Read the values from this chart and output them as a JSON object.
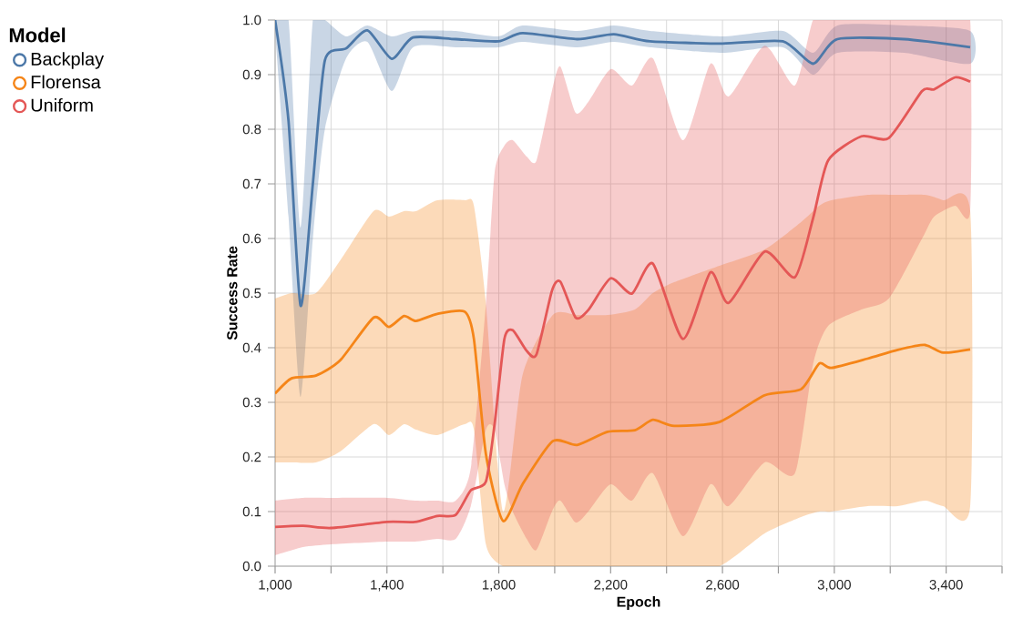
{
  "chart_data": {
    "type": "line",
    "xlabel": "Epoch",
    "ylabel": "Success Rate",
    "legend_title": "Model",
    "legend": "left",
    "grid": true,
    "line_style": "solid",
    "xlim": [
      1000,
      3600
    ],
    "xticks": [
      {
        "value": 1000,
        "label": "1,000"
      },
      {
        "value": 1200,
        "label": null
      },
      {
        "value": 1400,
        "label": "1,400"
      },
      {
        "value": 1600,
        "label": null
      },
      {
        "value": 1800,
        "label": "1,800"
      },
      {
        "value": 2000,
        "label": null
      },
      {
        "value": 2200,
        "label": "2,200"
      },
      {
        "value": 2400,
        "label": null
      },
      {
        "value": 2600,
        "label": "2,600"
      },
      {
        "value": 2800,
        "label": null
      },
      {
        "value": 3000,
        "label": "3,000"
      },
      {
        "value": 3200,
        "label": null
      },
      {
        "value": 3400,
        "label": "3,400"
      },
      {
        "value": 3600,
        "label": null
      }
    ],
    "ylim": [
      0,
      1
    ],
    "yticks": [
      {
        "value": 0,
        "label": "0.0"
      },
      0.1,
      0.2,
      0.3,
      0.4,
      0.5,
      0.6,
      0.7,
      0.8,
      0.9,
      {
        "value": 1,
        "label": "1.0"
      }
    ],
    "series": [
      {
        "name": "Backplay",
        "color": "#4c78a8",
        "x": [
          1000,
          1048,
          1091,
          1135,
          1178,
          1254,
          1330,
          1417,
          1493,
          1646,
          1798,
          1885,
          2080,
          2211,
          2341,
          2600,
          2816,
          2924,
          3011,
          3249,
          3486
        ],
        "values": [
          1.0,
          0.815,
          0.477,
          0.7,
          0.926,
          0.948,
          0.981,
          0.929,
          0.968,
          0.965,
          0.961,
          0.976,
          0.965,
          0.974,
          0.961,
          0.957,
          0.961,
          0.92,
          0.965,
          0.965,
          0.95
        ],
        "lower": [
          0.98,
          0.64,
          0.31,
          0.6,
          0.8,
          0.93,
          0.96,
          0.87,
          0.95,
          0.95,
          0.95,
          0.96,
          0.95,
          0.96,
          0.95,
          0.94,
          0.95,
          0.9,
          0.94,
          0.94,
          0.92
        ],
        "upper": [
          1.0,
          1.0,
          0.62,
          1.0,
          1.0,
          0.97,
          0.99,
          0.97,
          0.98,
          0.98,
          0.97,
          0.99,
          0.98,
          0.99,
          0.98,
          0.97,
          0.98,
          0.94,
          0.99,
          0.99,
          0.98
        ]
      },
      {
        "name": "Florensa",
        "color": "#f58518",
        "x": [
          1000,
          1059,
          1146,
          1233,
          1352,
          1407,
          1461,
          1504,
          1580,
          1678,
          1711,
          1754,
          1815,
          1885,
          1993,
          2080,
          2189,
          2287,
          2351,
          2427,
          2589,
          2751,
          2881,
          2946,
          2989,
          3119,
          3227,
          3324,
          3389,
          3486
        ],
        "values": [
          0.316,
          0.344,
          0.349,
          0.377,
          0.455,
          0.438,
          0.458,
          0.449,
          0.462,
          0.466,
          0.416,
          0.205,
          0.083,
          0.15,
          0.229,
          0.222,
          0.246,
          0.249,
          0.268,
          0.257,
          0.264,
          0.313,
          0.324,
          0.371,
          0.363,
          0.38,
          0.396,
          0.405,
          0.391,
          0.397
        ],
        "lower": [
          0.19,
          0.19,
          0.19,
          0.21,
          0.26,
          0.24,
          0.26,
          0.25,
          0.24,
          0.26,
          0.25,
          0.04,
          0.0,
          0.0,
          0.0,
          0.0,
          0.0,
          0.0,
          0.0,
          0.0,
          0.0,
          0.06,
          0.09,
          0.1,
          0.1,
          0.11,
          0.11,
          0.12,
          0.11,
          0.11
        ],
        "upper": [
          0.49,
          0.5,
          0.5,
          0.56,
          0.65,
          0.64,
          0.65,
          0.65,
          0.67,
          0.67,
          0.66,
          0.48,
          0.1,
          0.35,
          0.46,
          0.46,
          0.46,
          0.47,
          0.5,
          0.52,
          0.55,
          0.58,
          0.63,
          0.66,
          0.67,
          0.68,
          0.68,
          0.68,
          0.67,
          0.65
        ]
      },
      {
        "name": "Uniform",
        "color": "#e45756",
        "x": [
          1000,
          1100,
          1200,
          1400,
          1500,
          1580,
          1646,
          1700,
          1754,
          1785,
          1820,
          1850,
          1900,
          1935,
          1990,
          2020,
          2075,
          2120,
          2200,
          2276,
          2351,
          2459,
          2557,
          2622,
          2751,
          2859,
          2924,
          2978,
          3097,
          3195,
          3314,
          3357,
          3432,
          3486
        ],
        "values": [
          0.072,
          0.074,
          0.07,
          0.081,
          0.081,
          0.092,
          0.094,
          0.139,
          0.155,
          0.26,
          0.416,
          0.432,
          0.394,
          0.388,
          0.504,
          0.521,
          0.455,
          0.469,
          0.527,
          0.499,
          0.554,
          0.416,
          0.538,
          0.482,
          0.576,
          0.529,
          0.637,
          0.743,
          0.787,
          0.784,
          0.87,
          0.873,
          0.895,
          0.887
        ],
        "lower": [
          0.02,
          0.035,
          0.04,
          0.045,
          0.045,
          0.05,
          0.05,
          0.11,
          0.25,
          0.25,
          0.15,
          0.1,
          0.05,
          0.03,
          0.1,
          0.12,
          0.08,
          0.1,
          0.15,
          0.12,
          0.17,
          0.055,
          0.15,
          0.11,
          0.19,
          0.17,
          0.37,
          0.44,
          0.47,
          0.49,
          0.6,
          0.64,
          0.66,
          0.65
        ],
        "upper": [
          0.12,
          0.125,
          0.125,
          0.125,
          0.12,
          0.12,
          0.12,
          0.18,
          0.48,
          0.72,
          0.77,
          0.78,
          0.75,
          0.743,
          0.87,
          0.915,
          0.83,
          0.85,
          0.91,
          0.88,
          0.93,
          0.78,
          0.92,
          0.86,
          0.953,
          0.88,
          1.0,
          1.0,
          1.0,
          1.0,
          1.0,
          1.0,
          1.0,
          1.0
        ]
      }
    ]
  }
}
